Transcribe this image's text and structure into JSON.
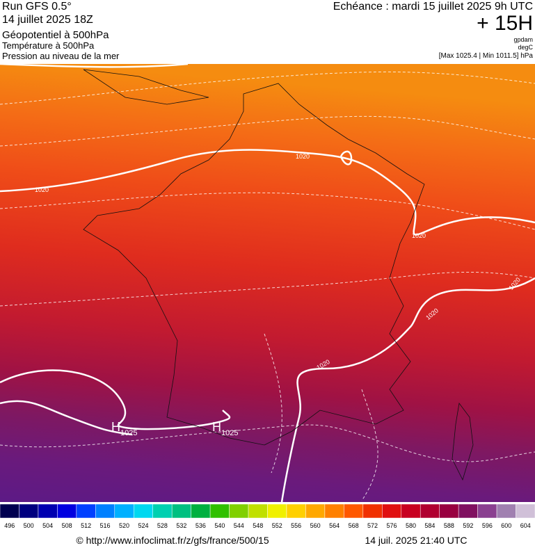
{
  "header": {
    "run": "Run GFS 0.5°",
    "run_date": "14 juillet 2025 18Z",
    "field_1": "Géopotentiel à 500hPa",
    "field_2": "Température à 500hPa",
    "field_3": "Pression au niveau de la mer",
    "valid_time": "Echéance : mardi 15 juillet 2025 9h UTC",
    "lead": "+ 15H",
    "unit_1": "gpdam",
    "unit_2": "degC",
    "pressure_range": "[Max 1025.4 | Min 1011.5] hPa"
  },
  "map": {
    "labels": [
      {
        "text": "1020"
      },
      {
        "text": "1020"
      },
      {
        "text": "1020"
      },
      {
        "text": "1020"
      },
      {
        "text": "1020"
      },
      {
        "text": "1020"
      }
    ],
    "highs": [
      {
        "symbol": "H",
        "value": "1025"
      },
      {
        "symbol": "H",
        "value": "1025"
      }
    ]
  },
  "colorbar": {
    "ticks": [
      496,
      500,
      504,
      508,
      512,
      516,
      520,
      524,
      528,
      532,
      536,
      540,
      544,
      548,
      552,
      556,
      560,
      564,
      568,
      572,
      576,
      580,
      584,
      588,
      592,
      596,
      600,
      604
    ],
    "colors": [
      "#000050",
      "#00007f",
      "#0000b0",
      "#0000e0",
      "#0040ff",
      "#0080ff",
      "#00b0ff",
      "#00d8f0",
      "#00d0b0",
      "#00c080",
      "#00b040",
      "#30c000",
      "#80d000",
      "#c0e000",
      "#f0f000",
      "#ffd000",
      "#ffa800",
      "#ff8000",
      "#ff5800",
      "#f03000",
      "#e01010",
      "#c80020",
      "#b00030",
      "#980040",
      "#801060",
      "#8a4090",
      "#a080b0",
      "#d0c0d8"
    ]
  },
  "footer": {
    "source": "© http://www.infoclimat.fr/z/gfs/france/500/15",
    "generated": "14 juil. 2025 21:40 UTC"
  }
}
